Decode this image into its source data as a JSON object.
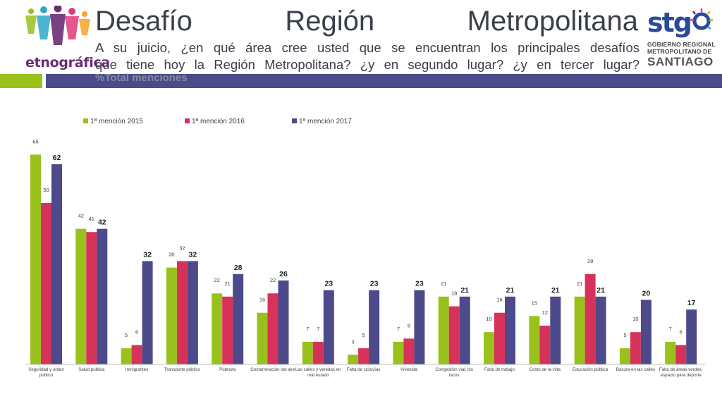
{
  "header": {
    "title": "Desafío Región Metropolitana",
    "subtitle_line1": "A su juicio, ¿en qué área cree usted que se encuentran los principales desafíos",
    "subtitle_line2": "que tiene hoy la Región Metropolitana? ¿y en segundo lugar? ¿y en tercer lugar?",
    "subtitle_line3": "%Total menciones"
  },
  "logos": {
    "left_text": "etnográfica",
    "right_text": "stg",
    "right_line1": "GOBIERNO REGIONAL",
    "right_line2": "METROPOLITANO DE",
    "right_line3": "SANTIAGO"
  },
  "colors": {
    "accent_green": "#99c11c",
    "accent_red": "#d6325a",
    "accent_purple": "#4c4a8a"
  },
  "chart_data": {
    "type": "bar",
    "title": "",
    "xlabel": "",
    "ylabel": "",
    "ylim": [
      0,
      70
    ],
    "legend_position": "top",
    "categories": [
      [
        "Seguridad y orden",
        "público"
      ],
      [
        "Salud pública"
      ],
      [
        "Inmigrantes"
      ],
      [
        "Transporte público"
      ],
      [
        "Pobreza"
      ],
      [
        "Contaminación del aire"
      ],
      [
        "Las calles y veredas en",
        "mal estado"
      ],
      [
        "Falta de ciclovías"
      ],
      [
        "Vivienda"
      ],
      [
        "Congestión vial, los",
        "tacos"
      ],
      [
        "Falta de trabajo"
      ],
      [
        "Costo de la vida"
      ],
      [
        "Educación pública"
      ],
      [
        "Basura en las calles"
      ],
      [
        "Falta de áreas verdes,",
        "espacio para deporte"
      ]
    ],
    "series": [
      {
        "name": "1ª mención 2015",
        "color": "#99c11c",
        "values": [
          65,
          42,
          5,
          30,
          22,
          16,
          7,
          3,
          7,
          21,
          10,
          15,
          21,
          5,
          7
        ]
      },
      {
        "name": "1ª mención 2016",
        "color": "#d6325a",
        "values": [
          50,
          41,
          6,
          32,
          21,
          22,
          7,
          5,
          8,
          18,
          16,
          12,
          28,
          10,
          6
        ]
      },
      {
        "name": "1ª mención 2017",
        "color": "#4c4a8a",
        "values": [
          62,
          42,
          32,
          32,
          28,
          26,
          23,
          23,
          23,
          21,
          21,
          21,
          21,
          20,
          17
        ]
      }
    ]
  }
}
